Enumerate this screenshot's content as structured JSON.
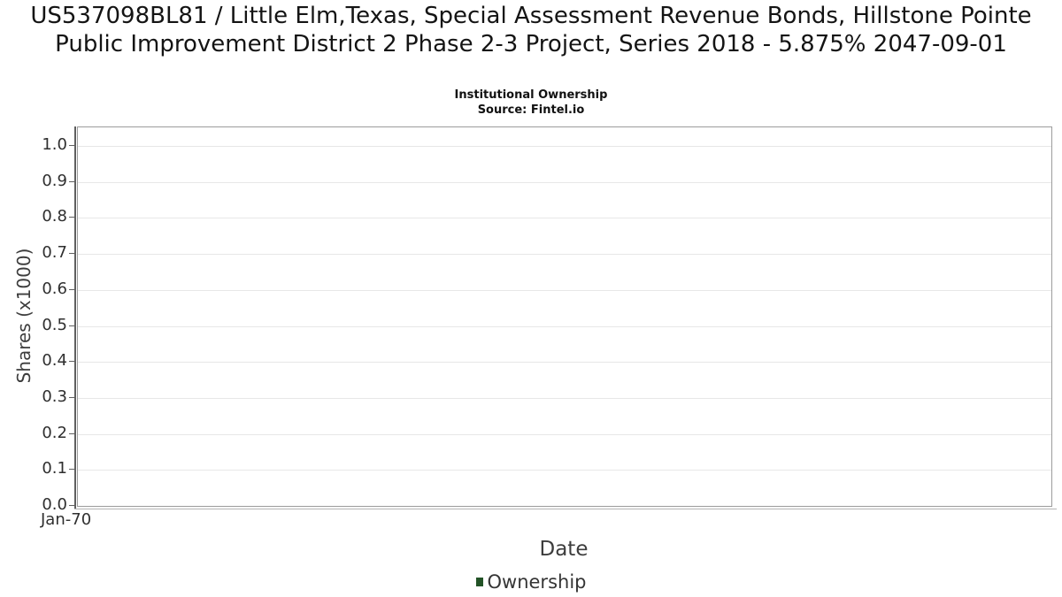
{
  "chart_data": {
    "type": "line",
    "title": "US537098BL81 / Little Elm,Texas, Special Assessment Revenue Bonds, Hillstone Pointe Public Improvement District 2 Phase 2-3 Project, Series 2018 - 5.875% 2047-09-01",
    "subtitle": "Institutional Ownership",
    "source": "Source: Fintel.io",
    "xlabel": "Date",
    "ylabel": "Shares (x1000)",
    "x_ticks": [
      "Jan-70"
    ],
    "y_ticks": [
      "1.0",
      "0.9",
      "0.8",
      "0.7",
      "0.6",
      "0.5",
      "0.4",
      "0.3",
      "0.2",
      "0.1",
      "0.0"
    ],
    "ylim": [
      0.0,
      1.05
    ],
    "grid": true,
    "legend_position": "bottom",
    "series": [
      {
        "name": "Ownership",
        "color": "#235327",
        "x": [],
        "values": []
      }
    ],
    "colors": {
      "gridline": "#e7e7e7",
      "plot_border": "#9c9c9c",
      "axis_line": "#5f5f5f",
      "x_axis_line": "#b5b5b5",
      "title_text": "#141414",
      "tick_text": "#2f2f2f",
      "axis_label_text": "#3d3d3d",
      "legend_marker": "#235327"
    }
  }
}
